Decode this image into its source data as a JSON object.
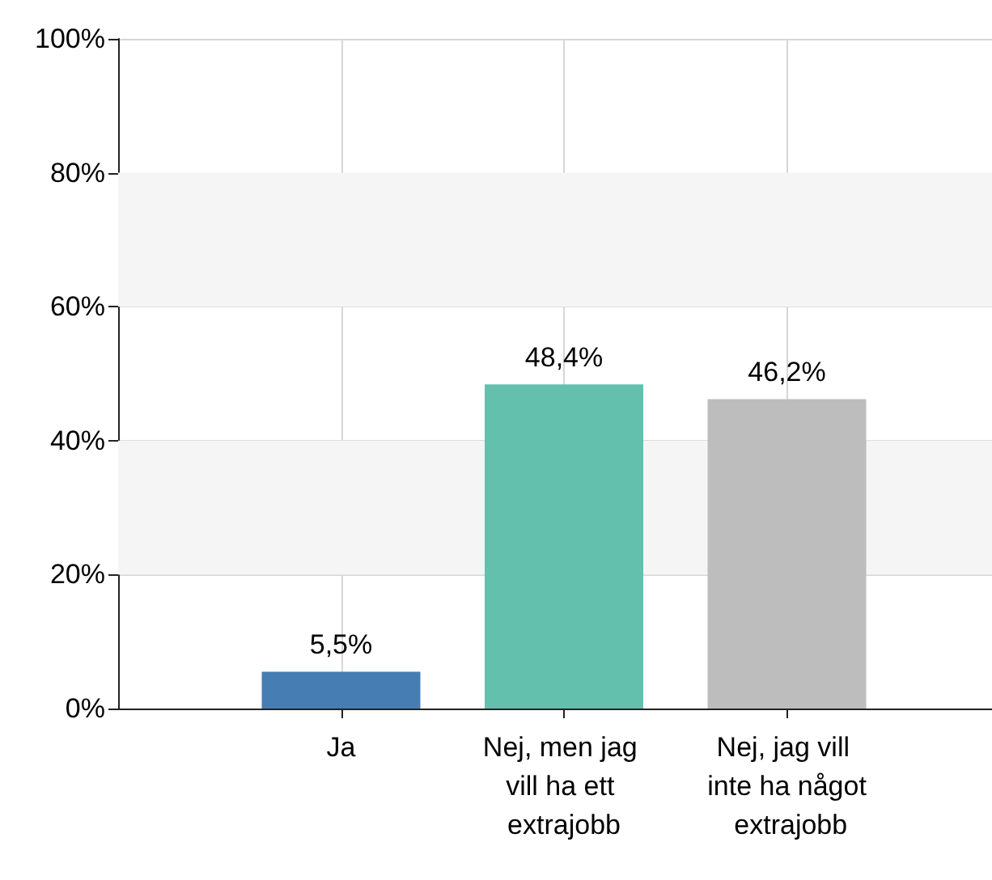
{
  "chart_data": {
    "type": "bar",
    "categories": [
      "Ja",
      "Nej, men jag vill ha ett extrajobb",
      "Nej, jag vill inte ha något extrajobb"
    ],
    "values": [
      5.5,
      48.4,
      46.2
    ],
    "colors": [
      "#467db3",
      "#63c0ac",
      "#bdbdbd"
    ],
    "value_labels": [
      "5,5%",
      "48,4%",
      "46,2%"
    ],
    "ylim": [
      0,
      100
    ],
    "yticks": [
      {
        "value": 0,
        "label": "0%"
      },
      {
        "value": 20,
        "label": "20%"
      },
      {
        "value": 40,
        "label": "40%"
      },
      {
        "value": 60,
        "label": "60%"
      },
      {
        "value": 80,
        "label": "80%"
      },
      {
        "value": 100,
        "label": "100%"
      }
    ],
    "bands": [
      {
        "axis": "y",
        "from": 20,
        "to": 40,
        "color": "#f5f5f5"
      },
      {
        "axis": "y",
        "from": 60,
        "to": 80,
        "color": "#f5f5f5"
      }
    ],
    "grid": true
  }
}
